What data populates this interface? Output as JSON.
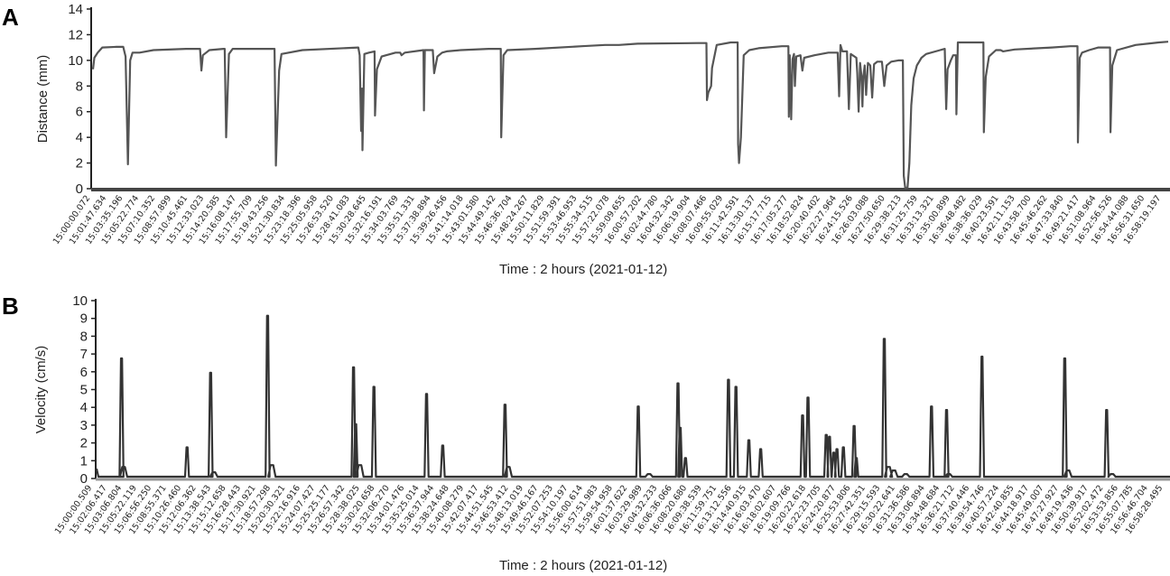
{
  "chart_data": [
    {
      "panel": "A",
      "type": "line",
      "title": "",
      "xlabel": "Time : 2 hours (2021-01-12)",
      "ylabel": "Distance (mm)",
      "ylim": [
        0,
        14
      ],
      "yticks": [
        0,
        2,
        4,
        6,
        8,
        10,
        12,
        14
      ],
      "grid": false,
      "legend": null,
      "line_color": "#555555",
      "xtick_labels": [
        "15:00:00.072",
        "15:01:47.634",
        "15:03:35.196",
        "15:05:22.774",
        "15:07:10.352",
        "15:08:57.899",
        "15:10:45.461",
        "15:12:33.023",
        "15:14:20.585",
        "15:16:08.147",
        "15:17:55.709",
        "15:19:43.256",
        "15:21:30.834",
        "15:23:18.396",
        "15:25:05.958",
        "15:26:53.520",
        "15:28:41.083",
        "15:30:28.645",
        "15:32:16.191",
        "15:34:03.769",
        "15:35:51.331",
        "15:37:38.894",
        "15:39:26.456",
        "15:41:14.018",
        "15:43:01.580",
        "15:44:49.142",
        "15:46:36.704",
        "15:48:24.267",
        "15:50:11.829",
        "15:51:59.391",
        "15:53:46.953",
        "15:55:34.515",
        "15:57:22.078",
        "15:59:09.655",
        "16:00:57.202",
        "16:02:44.780",
        "16:04:32.342",
        "16:06:19.904",
        "16:08:07.466",
        "16:09:55.029",
        "16:11:42.591",
        "16:13:30.137",
        "16:15:17.715",
        "16:17:05.277",
        "16:18:52.824",
        "16:20:40.402",
        "16:22:27.964",
        "16:24:15.526",
        "16:26:03.088",
        "16:27:50.650",
        "16:29:38.213",
        "16:31:25.759",
        "16:33:13.321",
        "16:35:00.899",
        "16:36:48.482",
        "16:38:36.029",
        "16:40:23.591",
        "16:42:11.153",
        "16:43:58.700",
        "16:45:46.262",
        "16:47:33.840",
        "16:49:21.417",
        "16:51:08.964",
        "16:52:56.526",
        "16:54:44.088",
        "16:56:31.650",
        "16:58:19.197"
      ],
      "points": [
        [
          0,
          9.3
        ],
        [
          0.3,
          10.2
        ],
        [
          1,
          10.6
        ],
        [
          2,
          11.0
        ],
        [
          5,
          11.05
        ],
        [
          6.5,
          11.05
        ],
        [
          7.0,
          10.3
        ],
        [
          7.5,
          1.9
        ],
        [
          8.0,
          10.0
        ],
        [
          8.5,
          10.6
        ],
        [
          10,
          10.6
        ],
        [
          13,
          10.8
        ],
        [
          20,
          10.9
        ],
        [
          23,
          10.9
        ],
        [
          23.3,
          9.2
        ],
        [
          23.6,
          10.4
        ],
        [
          25,
          10.8
        ],
        [
          28,
          10.9
        ],
        [
          28.3,
          10.9
        ],
        [
          28.6,
          4.0
        ],
        [
          29.2,
          10.5
        ],
        [
          30,
          10.9
        ],
        [
          38,
          10.9
        ],
        [
          39.0,
          10.9
        ],
        [
          39.3,
          1.8
        ],
        [
          40.0,
          9.2
        ],
        [
          40.5,
          10.5
        ],
        [
          45,
          10.8
        ],
        [
          57,
          11.0
        ],
        [
          57.3,
          10.4
        ],
        [
          57.6,
          4.5
        ],
        [
          57.8,
          7.8
        ],
        [
          57.9,
          3.0
        ],
        [
          58.3,
          10.5
        ],
        [
          59.3,
          10.6
        ],
        [
          60.5,
          10.7
        ],
        [
          60.6,
          5.7
        ],
        [
          61.0,
          9.3
        ],
        [
          62,
          10.3
        ],
        [
          65,
          10.6
        ],
        [
          66,
          10.6
        ],
        [
          66.3,
          10.4
        ],
        [
          67,
          10.6
        ],
        [
          71,
          10.8
        ],
        [
          71.1,
          6.1
        ],
        [
          71.3,
          10.8
        ],
        [
          73,
          10.8
        ],
        [
          73.3,
          9.0
        ],
        [
          74,
          10.3
        ],
        [
          75,
          10.6
        ],
        [
          76,
          10.7
        ],
        [
          79,
          10.8
        ],
        [
          85,
          10.9
        ],
        [
          87.6,
          10.9
        ],
        [
          87.7,
          4.0
        ],
        [
          88.2,
          10.4
        ],
        [
          89,
          10.8
        ],
        [
          95,
          10.9
        ],
        [
          105,
          11.1
        ],
        [
          110,
          11.2
        ],
        [
          113,
          11.2
        ],
        [
          117,
          11.3
        ],
        [
          130,
          11.35
        ],
        [
          131.8,
          11.35
        ],
        [
          131.9,
          6.9
        ],
        [
          132.2,
          7.5
        ],
        [
          132.8,
          8.0
        ],
        [
          133,
          9.4
        ],
        [
          134,
          11.2
        ],
        [
          137,
          11.4
        ],
        [
          138.5,
          11.4
        ],
        [
          138.6,
          3.5
        ],
        [
          138.8,
          2.0
        ],
        [
          139.2,
          4.0
        ],
        [
          139.8,
          10.4
        ],
        [
          141,
          10.8
        ],
        [
          143,
          10.95
        ],
        [
          148,
          11.1
        ],
        [
          149.4,
          11.1
        ],
        [
          149.5,
          5.6
        ],
        [
          149.7,
          10.4
        ],
        [
          150,
          5.4
        ],
        [
          150.3,
          10.1
        ],
        [
          150.6,
          10.5
        ],
        [
          150.8,
          8.0
        ],
        [
          151.1,
          10.3
        ],
        [
          152,
          10.4
        ],
        [
          152.4,
          9.2
        ],
        [
          152.8,
          10.2
        ],
        [
          155,
          10.4
        ],
        [
          158,
          10.6
        ],
        [
          160,
          10.6
        ],
        [
          160.3,
          7.2
        ],
        [
          160.6,
          11.2
        ],
        [
          161.0,
          10.7
        ],
        [
          162,
          10.7
        ],
        [
          162.4,
          6.2
        ],
        [
          162.8,
          10.5
        ],
        [
          164,
          10.2
        ],
        [
          164.2,
          9.0
        ],
        [
          164.5,
          6.0
        ],
        [
          164.8,
          9.8
        ],
        [
          165.1,
          8.8
        ],
        [
          165.3,
          6.4
        ],
        [
          165.5,
          8.7
        ],
        [
          165.8,
          9.6
        ],
        [
          166.1,
          7.3
        ],
        [
          166.5,
          9.8
        ],
        [
          167,
          9.6
        ],
        [
          167.4,
          7.1
        ],
        [
          167.8,
          9.7
        ],
        [
          168.5,
          9.9
        ],
        [
          169.5,
          9.9
        ],
        [
          170,
          8.0
        ],
        [
          170.5,
          9.6
        ],
        [
          171.5,
          9.9
        ],
        [
          173,
          10.0
        ],
        [
          174,
          10.0
        ],
        [
          174.2,
          1.0
        ],
        [
          174.5,
          0.05
        ],
        [
          175,
          0.1
        ],
        [
          175.4,
          2.0
        ],
        [
          175.8,
          6.5
        ],
        [
          176.3,
          8.6
        ],
        [
          177,
          9.6
        ],
        [
          178,
          10.2
        ],
        [
          179,
          10.5
        ],
        [
          182,
          10.8
        ],
        [
          183,
          10.9
        ],
        [
          183.3,
          6.2
        ],
        [
          183.6,
          9.3
        ],
        [
          184.3,
          10.0
        ],
        [
          184.8,
          10.4
        ],
        [
          185.4,
          10.4
        ],
        [
          185.5,
          5.8
        ],
        [
          185.8,
          11.4
        ],
        [
          191,
          11.4
        ],
        [
          191.3,
          11.4
        ],
        [
          191.4,
          4.4
        ],
        [
          191.8,
          8.7
        ],
        [
          192.5,
          10.3
        ],
        [
          194,
          10.8
        ],
        [
          195,
          10.8
        ],
        [
          195.5,
          10.7
        ],
        [
          198,
          10.85
        ],
        [
          206,
          11.0
        ],
        [
          210,
          11.1
        ],
        [
          211.5,
          11.1
        ],
        [
          211.6,
          3.6
        ],
        [
          212,
          10.2
        ],
        [
          212.5,
          10.6
        ],
        [
          214,
          10.8
        ],
        [
          216,
          11.0
        ],
        [
          218.5,
          11.0
        ],
        [
          218.6,
          4.4
        ],
        [
          219,
          9.6
        ],
        [
          220,
          10.8
        ],
        [
          224,
          11.2
        ],
        [
          229,
          11.4
        ],
        [
          231,
          11.45
        ]
      ],
      "x_unit_note": "x in minutes from 15:00 (approx)"
    },
    {
      "panel": "B",
      "type": "line",
      "title": "",
      "xlabel": "Time : 2 hours (2021-01-12)",
      "ylabel": "Velocity (cm/s)",
      "ylim": [
        0,
        10
      ],
      "yticks": [
        0,
        1,
        2,
        3,
        4,
        5,
        6,
        7,
        8,
        9,
        10
      ],
      "grid": false,
      "legend": null,
      "line_color": "#333333",
      "xtick_labels": [
        "15:00:00.509",
        "15:02:06.417",
        "15:03:06.804",
        "15:05:22.119",
        "15:06:56.250",
        "15:08:55.371",
        "15:10:26.460",
        "15:12:06.362",
        "15:13:38.543",
        "15:15:12.658",
        "15:16:28.443",
        "15:17:30.921",
        "15:18:57.298",
        "15:20:30.321",
        "15:22:16.916",
        "15:24:07.427",
        "15:25:25.177",
        "15:26:57.342",
        "15:28:38.025",
        "15:30:20.658",
        "15:32:06.270",
        "15:34:01.476",
        "15:35:25.014",
        "15:36:37.944",
        "15:38:24.648",
        "15:40:08.279",
        "15:42:07.417",
        "15:44:51.545",
        "15:46:53.412",
        "15:48:13.019",
        "15:49:46.167",
        "15:52:07.253",
        "15:54:10.197",
        "15:56:00.614",
        "15:57:51.983",
        "15:59:54.958",
        "16:01:37.622",
        "16:03:29.989",
        "16:04:32.233",
        "16:06:36.066",
        "16:08:20.680",
        "16:09:38.539",
        "16:11:59.751",
        "16:13:12.556",
        "16:14:40.915",
        "16:16:03.470",
        "16:18:02.607",
        "16:19:09.766",
        "16:20:22.618",
        "16:22:23.705",
        "16:24:20.877",
        "16:25:53.806",
        "16:27:42.351",
        "16:29:15.593",
        "16:30:22.641",
        "16:31:36.586",
        "16:33:06.894",
        "16:34:48.684",
        "16:36:21.712",
        "16:37:40.446",
        "16:39:54.746",
        "16:40:57.224",
        "16:42:40.855",
        "16:44:18.917",
        "16:45:49.007",
        "16:47:27.927",
        "16:49:19.436",
        "16:50:39.917",
        "16:52:02.472",
        "16:53:53.856",
        "16:55:07.785",
        "16:56:46.704",
        "16:58:28.495"
      ],
      "peaks": [
        {
          "x_frac": 0.024,
          "value": 6.7
        },
        {
          "x_frac": 0.026,
          "value": 0.6
        },
        {
          "x_frac": 0.085,
          "value": 1.7
        },
        {
          "x_frac": 0.107,
          "value": 5.9
        },
        {
          "x_frac": 0.11,
          "value": 0.3
        },
        {
          "x_frac": 0.16,
          "value": 9.1
        },
        {
          "x_frac": 0.164,
          "value": 0.7
        },
        {
          "x_frac": 0.24,
          "value": 6.2
        },
        {
          "x_frac": 0.242,
          "value": 3.0
        },
        {
          "x_frac": 0.246,
          "value": 0.7
        },
        {
          "x_frac": 0.259,
          "value": 5.1
        },
        {
          "x_frac": 0.308,
          "value": 4.7
        },
        {
          "x_frac": 0.323,
          "value": 1.8
        },
        {
          "x_frac": 0.381,
          "value": 4.1
        },
        {
          "x_frac": 0.384,
          "value": 0.6
        },
        {
          "x_frac": 0.505,
          "value": 4.0
        },
        {
          "x_frac": 0.515,
          "value": 0.2
        },
        {
          "x_frac": 0.542,
          "value": 5.3
        },
        {
          "x_frac": 0.544,
          "value": 2.8
        },
        {
          "x_frac": 0.549,
          "value": 1.1
        },
        {
          "x_frac": 0.589,
          "value": 5.5
        },
        {
          "x_frac": 0.596,
          "value": 5.1
        },
        {
          "x_frac": 0.608,
          "value": 2.1
        },
        {
          "x_frac": 0.619,
          "value": 1.6
        },
        {
          "x_frac": 0.658,
          "value": 3.5
        },
        {
          "x_frac": 0.663,
          "value": 4.5
        },
        {
          "x_frac": 0.68,
          "value": 2.4
        },
        {
          "x_frac": 0.683,
          "value": 2.3
        },
        {
          "x_frac": 0.687,
          "value": 1.4
        },
        {
          "x_frac": 0.69,
          "value": 1.6
        },
        {
          "x_frac": 0.696,
          "value": 1.7
        },
        {
          "x_frac": 0.706,
          "value": 2.9
        },
        {
          "x_frac": 0.708,
          "value": 1.1
        },
        {
          "x_frac": 0.734,
          "value": 7.8
        },
        {
          "x_frac": 0.738,
          "value": 0.6
        },
        {
          "x_frac": 0.743,
          "value": 0.4
        },
        {
          "x_frac": 0.754,
          "value": 0.2
        },
        {
          "x_frac": 0.778,
          "value": 4.0
        },
        {
          "x_frac": 0.792,
          "value": 3.8
        },
        {
          "x_frac": 0.794,
          "value": 0.2
        },
        {
          "x_frac": 0.825,
          "value": 6.8
        },
        {
          "x_frac": 0.902,
          "value": 6.7
        },
        {
          "x_frac": 0.905,
          "value": 0.4
        },
        {
          "x_frac": 0.941,
          "value": 3.8
        },
        {
          "x_frac": 0.946,
          "value": 0.2
        }
      ],
      "baseline": 0.05
    }
  ],
  "panels": {
    "a": {
      "letter": "A",
      "ylabel": "Distance (mm)",
      "xlabel": "Time : 2 hours (2021-01-12)"
    },
    "b": {
      "letter": "B",
      "ylabel": "Velocity (cm/s)",
      "xlabel": "Time : 2 hours (2021-01-12)"
    }
  }
}
